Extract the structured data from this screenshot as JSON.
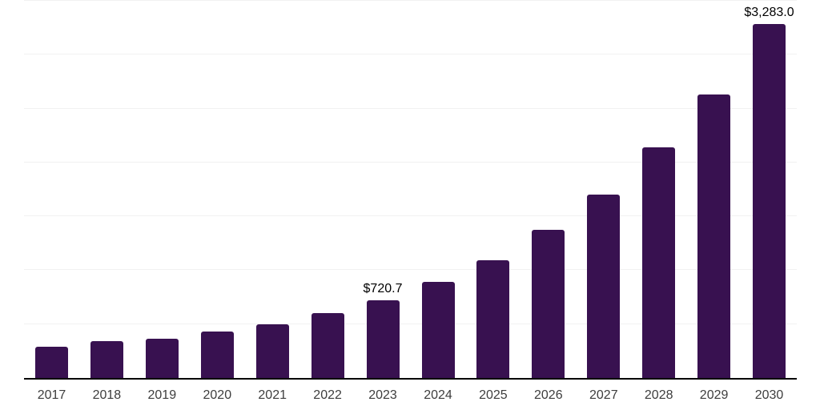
{
  "chart_data": {
    "type": "bar",
    "title": "",
    "xlabel": "",
    "ylabel": "",
    "categories": [
      "2017",
      "2018",
      "2019",
      "2020",
      "2021",
      "2022",
      "2023",
      "2024",
      "2025",
      "2026",
      "2027",
      "2028",
      "2029",
      "2030"
    ],
    "values": [
      290,
      342,
      364,
      431,
      498,
      602,
      720.7,
      891,
      1092,
      1374,
      1701,
      2139,
      2630,
      3283.0
    ],
    "data_labels": [
      {
        "category": "2023",
        "value": 720.7,
        "text": "$720.7"
      },
      {
        "category": "2030",
        "value": 3283.0,
        "text": "$3,283.0"
      }
    ],
    "ylim": [
      0,
      3500
    ],
    "gridline_interval": 500,
    "grid": "horizontal-only",
    "y_tick_labels_visible": false,
    "legend": "none",
    "series_name": "",
    "currency_format": "$#,##0.0"
  },
  "colors": {
    "bar": "#381150",
    "gridline": "#f1f1f1",
    "axis_line": "#000000",
    "x_tick_label": "#3d3d3d",
    "data_label": "#000000",
    "background": "#ffffff"
  }
}
